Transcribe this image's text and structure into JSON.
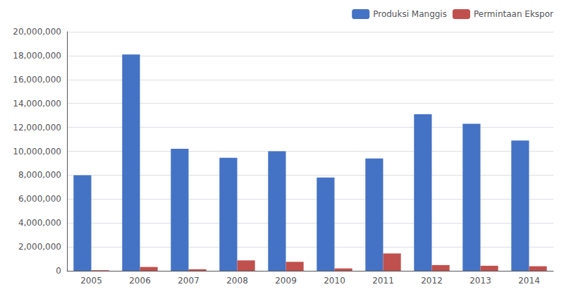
{
  "chart_data": {
    "type": "bar",
    "categories": [
      "2005",
      "2006",
      "2007",
      "2008",
      "2009",
      "2010",
      "2011",
      "2012",
      "2013",
      "2014"
    ],
    "series": [
      {
        "name": "Produksi Manggis",
        "color": "#4472C4",
        "values": [
          8000000,
          18100000,
          10200000,
          9450000,
          10000000,
          7800000,
          9400000,
          13100000,
          12300000,
          10900000
        ]
      },
      {
        "name": "Permintaan Ekspor",
        "color": "#C0504D",
        "values": [
          50000,
          320000,
          130000,
          870000,
          750000,
          200000,
          1450000,
          480000,
          420000,
          380000
        ]
      }
    ],
    "ylim": [
      0,
      20000000
    ],
    "yticks": [
      0,
      {
        "value": 2000000,
        "label": "2,000,000"
      },
      {
        "value": 4000000,
        "label": "4,000,000"
      },
      {
        "value": 6000000,
        "label": "6,000,000"
      },
      {
        "value": 8000000,
        "label": "8,000,000"
      },
      {
        "value": 10000000,
        "label": "10,000,000"
      },
      {
        "value": 12000000,
        "label": "12,000,000"
      },
      {
        "value": 14000000,
        "label": "14,000,000"
      },
      {
        "value": 16000000,
        "label": "16,000,000"
      },
      {
        "value": 18000000,
        "label": "18,000,000"
      },
      {
        "value": 20000000,
        "label": "20,000,000"
      }
    ],
    "grid": true,
    "legend": "upper right"
  }
}
